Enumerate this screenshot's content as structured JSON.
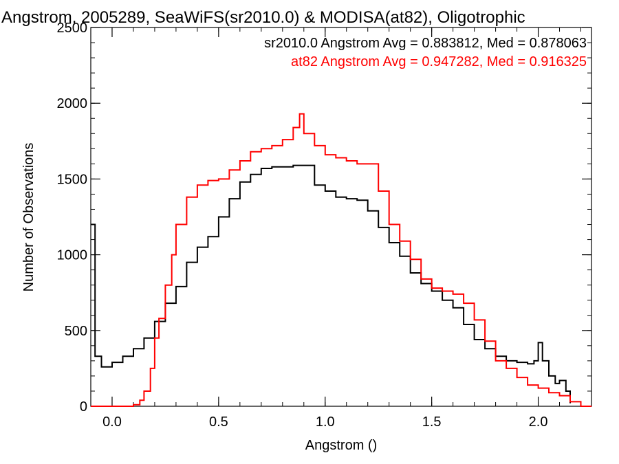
{
  "chart_data": {
    "type": "line",
    "title": "Angstrom, 2005289, SeaWiFS(sr2010.0) & MODISA(at82), Oligotrophic",
    "xlabel": "Angstrom ()",
    "ylabel": "Number of Observations",
    "xlim": [
      -0.1,
      2.25
    ],
    "ylim": [
      0,
      2500
    ],
    "x_ticks": [
      0.0,
      0.5,
      1.0,
      1.5,
      2.0
    ],
    "x_tick_labels": [
      "0.0",
      "0.5",
      "1.0",
      "1.5",
      "2.0"
    ],
    "y_ticks": [
      0,
      500,
      1000,
      1500,
      2000,
      2500
    ],
    "y_tick_labels": [
      "0",
      "500",
      "1000",
      "1500",
      "2000",
      "2500"
    ],
    "x_minor_step": 0.1,
    "y_minor_step": 100,
    "step_style": "histogram",
    "grid": false,
    "legend_placement": "top-right",
    "annotations": [
      {
        "text": "sr2010.0 Angstrom Avg = 0.883812, Med = 0.878063",
        "color": "#000000"
      },
      {
        "text": "at82 Angstrom Avg = 0.947282, Med = 0.916325",
        "color": "#ff0000"
      }
    ],
    "series": [
      {
        "color": "#000000",
        "x": [
          -0.1,
          -0.08,
          -0.05,
          0.0,
          0.05,
          0.1,
          0.15,
          0.2,
          0.25,
          0.3,
          0.35,
          0.4,
          0.45,
          0.5,
          0.55,
          0.6,
          0.65,
          0.7,
          0.75,
          0.8,
          0.85,
          0.9,
          0.95,
          1.0,
          1.05,
          1.1,
          1.15,
          1.2,
          1.25,
          1.3,
          1.35,
          1.4,
          1.45,
          1.5,
          1.55,
          1.6,
          1.65,
          1.7,
          1.75,
          1.8,
          1.85,
          1.9,
          1.95,
          1.98,
          2.0,
          2.02,
          2.05,
          2.08,
          2.1,
          2.13,
          2.15
        ],
        "values": [
          1200,
          330,
          260,
          290,
          330,
          380,
          450,
          560,
          680,
          790,
          950,
          1050,
          1120,
          1250,
          1370,
          1480,
          1530,
          1570,
          1580,
          1580,
          1590,
          1590,
          1460,
          1420,
          1380,
          1370,
          1360,
          1290,
          1180,
          1080,
          990,
          880,
          810,
          760,
          700,
          650,
          540,
          440,
          380,
          330,
          300,
          290,
          280,
          300,
          420,
          300,
          200,
          150,
          170,
          100,
          20
        ]
      },
      {
        "color": "#ff0000",
        "x": [
          -0.1,
          0.0,
          0.05,
          0.1,
          0.13,
          0.15,
          0.18,
          0.2,
          0.22,
          0.25,
          0.28,
          0.3,
          0.35,
          0.4,
          0.45,
          0.5,
          0.55,
          0.6,
          0.65,
          0.7,
          0.75,
          0.8,
          0.85,
          0.88,
          0.9,
          0.95,
          1.0,
          1.05,
          1.1,
          1.15,
          1.2,
          1.25,
          1.3,
          1.35,
          1.4,
          1.45,
          1.5,
          1.55,
          1.6,
          1.65,
          1.7,
          1.75,
          1.8,
          1.85,
          1.9,
          1.95,
          2.0,
          2.05,
          2.1,
          2.15,
          2.2,
          2.25
        ],
        "values": [
          0,
          0,
          0,
          10,
          40,
          100,
          250,
          450,
          580,
          800,
          1000,
          1200,
          1380,
          1460,
          1490,
          1500,
          1560,
          1620,
          1680,
          1700,
          1720,
          1760,
          1840,
          1930,
          1800,
          1720,
          1660,
          1640,
          1620,
          1600,
          1600,
          1420,
          1200,
          1090,
          970,
          840,
          780,
          760,
          740,
          680,
          570,
          430,
          300,
          250,
          190,
          140,
          120,
          90,
          70,
          30,
          0,
          0
        ]
      }
    ]
  }
}
